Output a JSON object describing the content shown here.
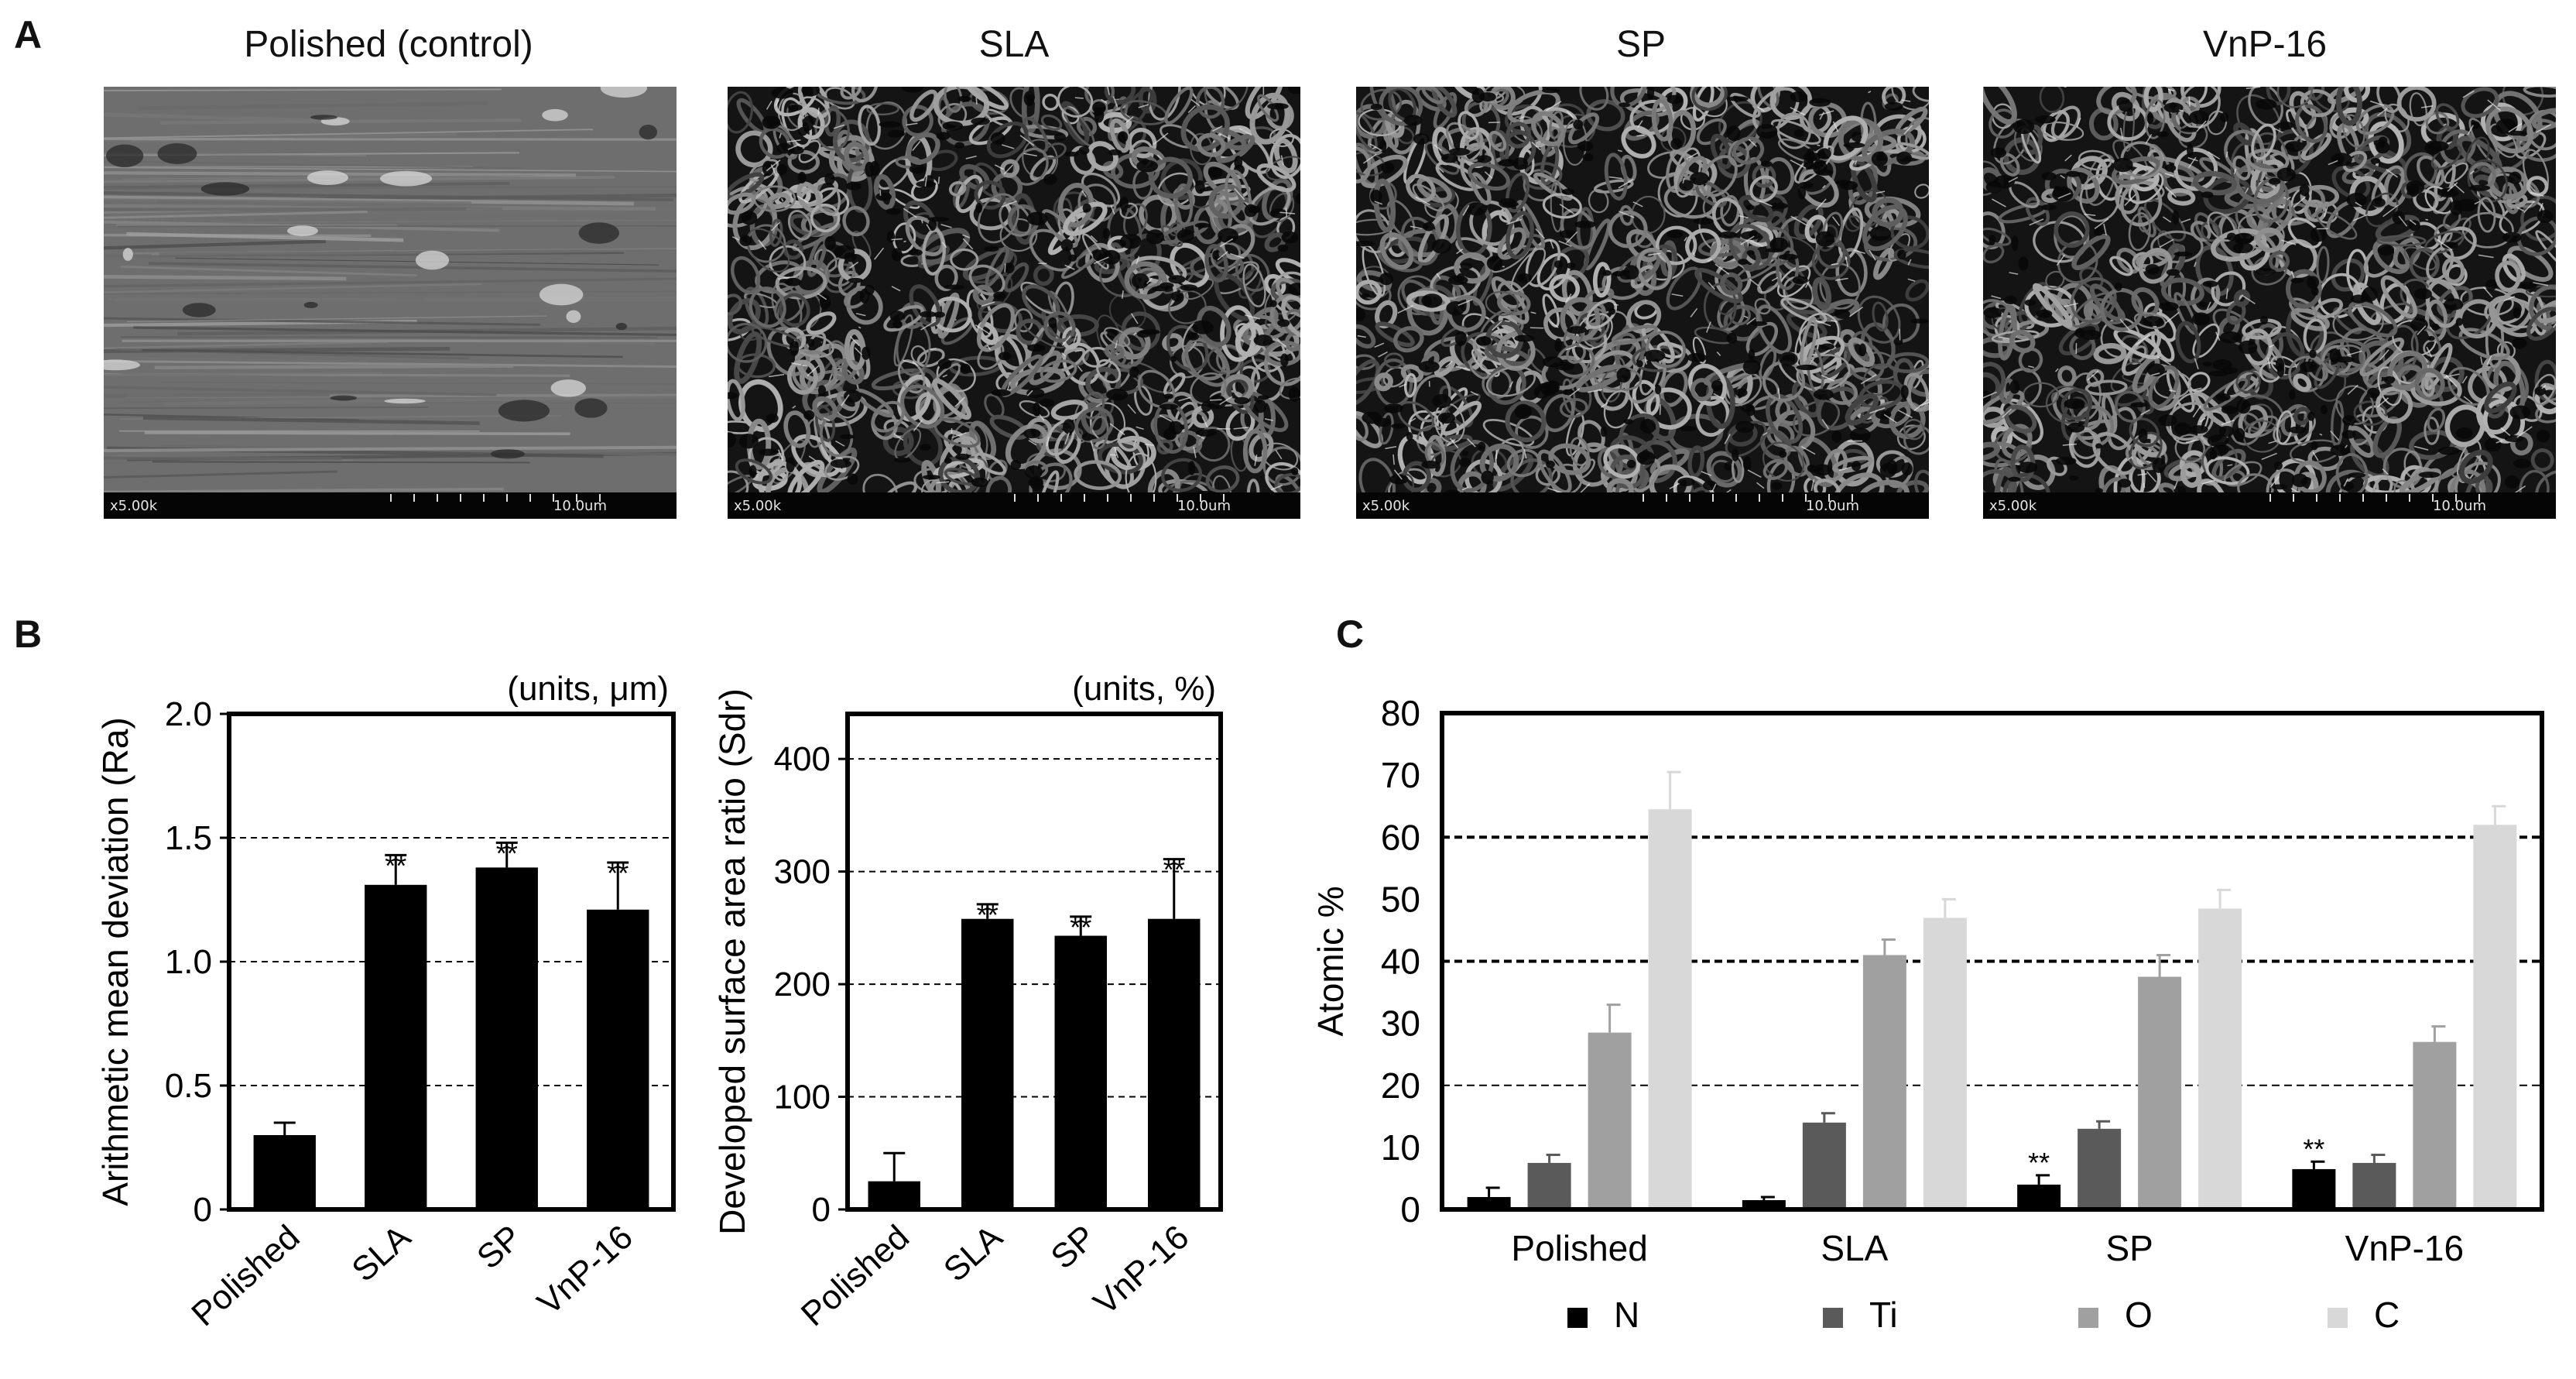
{
  "panels": {
    "a": "A",
    "b": "B",
    "c": "C"
  },
  "sem": [
    {
      "title": "Polished (control)",
      "mag": "x5.00k",
      "scale": "10.0um",
      "texture": "smooth"
    },
    {
      "title": "SLA",
      "mag": "x5.00k",
      "scale": "10.0um",
      "texture": "porous"
    },
    {
      "title": "SP",
      "mag": "x5.00k",
      "scale": "10.0um",
      "texture": "porous"
    },
    {
      "title": "VnP-16",
      "mag": "x5.00k",
      "scale": "10.0um",
      "texture": "porous"
    }
  ],
  "chart_data": [
    {
      "type": "bar",
      "categories": [
        "Polished",
        "SLA",
        "SP",
        "VnP-16"
      ],
      "values": [
        0.3,
        1.31,
        1.38,
        1.21
      ],
      "errors": [
        0.05,
        0.12,
        0.1,
        0.19
      ],
      "significance": [
        "",
        "**",
        "**",
        "**"
      ],
      "ylabel": "Arithmetic mean deviation (Ra)",
      "units": "(units, μm)",
      "ylim": [
        0,
        2.0
      ],
      "yticks": [
        "0",
        "0.5",
        "1.0",
        "1.5",
        "2.0"
      ],
      "ytick_values": [
        0,
        0.5,
        1.0,
        1.5,
        2.0
      ],
      "gridlines": [
        0.5,
        1.0,
        1.5
      ],
      "bar_color": "#000000"
    },
    {
      "type": "bar",
      "categories": [
        "Polished",
        "SLA",
        "SP",
        "VnP-16"
      ],
      "values": [
        25,
        258,
        243,
        258
      ],
      "errors": [
        25,
        13,
        17,
        53
      ],
      "significance": [
        "",
        "**",
        "**",
        "**"
      ],
      "ylabel": "Developed surface area ratio (Sdr)",
      "units": "(units, %)",
      "ylim": [
        0,
        440
      ],
      "yticks": [
        "0",
        "100",
        "200",
        "300",
        "400"
      ],
      "ytick_values": [
        0,
        100,
        200,
        300,
        400
      ],
      "gridlines": [
        100,
        200,
        300,
        400
      ],
      "bar_color": "#000000"
    },
    {
      "type": "bar",
      "categories": [
        "Polished",
        "SLA",
        "SP",
        "VnP-16"
      ],
      "series": [
        {
          "name": "N",
          "values": [
            2,
            1.5,
            4,
            6.5
          ],
          "errors": [
            1.5,
            0.5,
            1.5,
            1.2
          ],
          "significance": [
            "",
            "",
            "**",
            "**"
          ],
          "color": "#000000"
        },
        {
          "name": "Ti",
          "values": [
            7.5,
            14,
            13,
            7.5
          ],
          "errors": [
            1.3,
            1.5,
            1.2,
            1.3
          ],
          "significance": [
            "",
            "",
            "",
            ""
          ],
          "color": "#5a5a5a"
        },
        {
          "name": "O",
          "values": [
            28.5,
            41,
            37.5,
            27
          ],
          "errors": [
            4.5,
            2.5,
            3.5,
            2.5
          ],
          "significance": [
            "",
            "",
            "",
            ""
          ],
          "color": "#a0a0a0"
        },
        {
          "name": "C",
          "values": [
            64.5,
            47,
            48.5,
            62
          ],
          "errors": [
            6,
            3,
            3,
            3
          ],
          "significance": [
            "",
            "",
            "",
            ""
          ],
          "color": "#d8d8d8"
        }
      ],
      "ylabel": "Atomic %",
      "ylim": [
        0,
        80
      ],
      "yticks": [
        "0",
        "10",
        "20",
        "30",
        "40",
        "50",
        "60",
        "70",
        "80"
      ],
      "ytick_values": [
        0,
        10,
        20,
        30,
        40,
        50,
        60,
        70,
        80
      ],
      "gridlines": [
        20,
        40,
        60
      ],
      "legend_position": "bottom"
    }
  ]
}
